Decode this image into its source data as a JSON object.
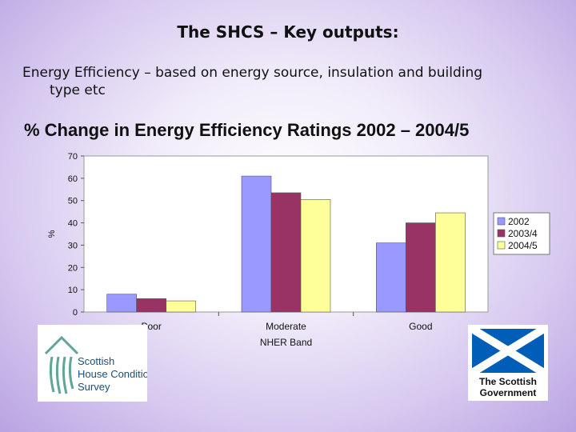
{
  "slide": {
    "title": "The SHCS – Key outputs:",
    "body_line1": "Energy Efficiency – based on energy source, insulation and building",
    "body_line2": "type etc",
    "chart_heading": "% Change in Energy Efficiency Ratings 2002 – 2004/5"
  },
  "logos": {
    "shcs": [
      "Scottish",
      "House Condition",
      "Survey"
    ],
    "gov": [
      "The Scottish",
      "Government"
    ]
  },
  "colors": {
    "series_2002": "#9999FF",
    "series_2003_4": "#993366",
    "series_2004_5": "#FFFF99",
    "plot_bg": "#FFFFFF",
    "logo_blue": "#005EB8"
  },
  "chart_data": {
    "type": "bar",
    "title": "",
    "xlabel": "NHER Band",
    "ylabel": "%",
    "ylim": [
      0,
      70
    ],
    "yticks": [
      0,
      10,
      20,
      30,
      40,
      50,
      60,
      70
    ],
    "categories": [
      "Poor",
      "Moderate",
      "Good"
    ],
    "series": [
      {
        "name": "2002",
        "values": [
          8,
          61,
          31
        ]
      },
      {
        "name": "2003/4",
        "values": [
          6,
          53.5,
          40
        ]
      },
      {
        "name": "2004/5",
        "values": [
          5,
          50.5,
          44.5
        ]
      }
    ],
    "legend_position": "right",
    "grid": false
  }
}
